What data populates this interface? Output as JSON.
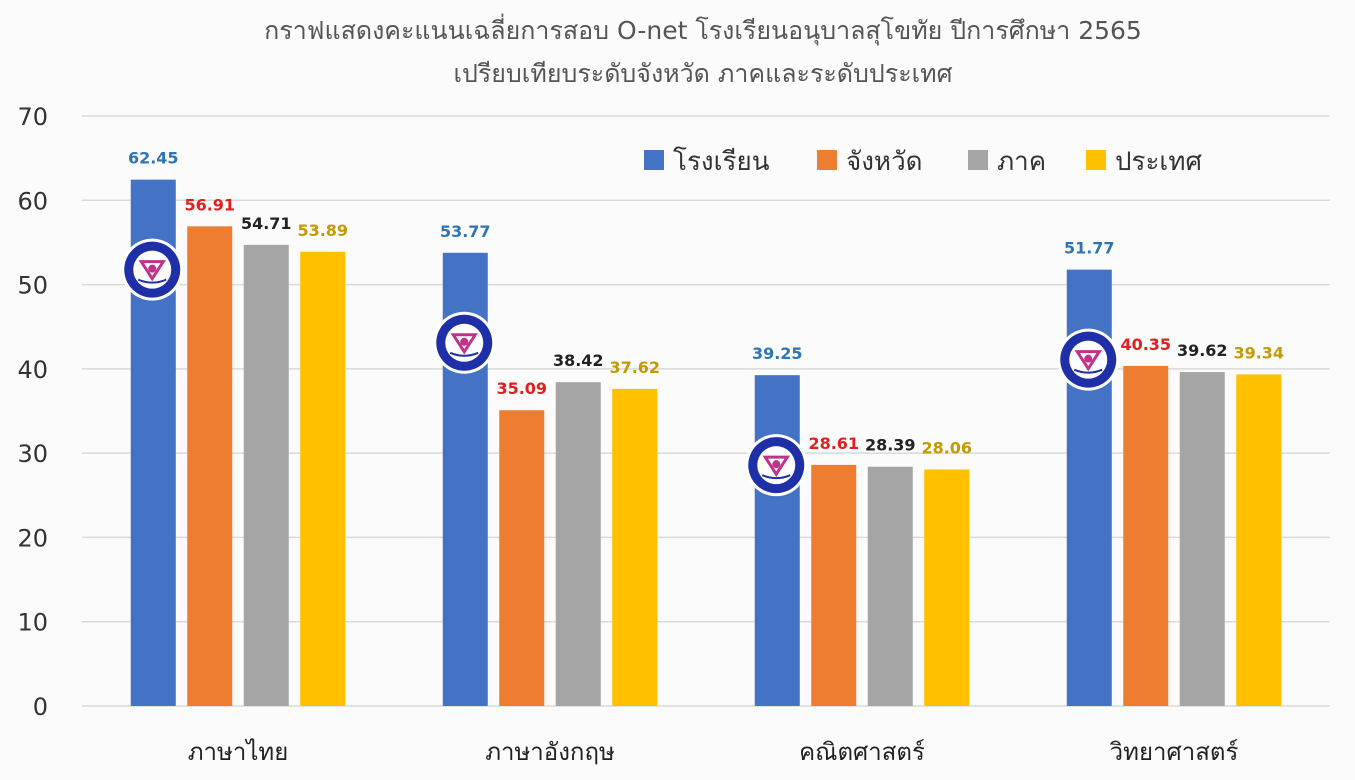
{
  "chart_data": {
    "type": "bar",
    "title": [
      "กราฟแสดงคะแนนเฉลี่ยการสอบ O-net โรงเรียนอนุบาลสุโขทัย ปีการศึกษา 2565",
      "เปรียบเทียบระดับจังหวัด ภาคและระดับประเทศ"
    ],
    "categories": [
      "ภาษาไทย",
      "ภาษาอังกฤษ",
      "คณิตศาสตร์",
      "วิทยาศาสตร์"
    ],
    "series": [
      {
        "name": "โรงเรียน",
        "values": [
          62.45,
          53.77,
          39.25,
          51.77
        ],
        "color": "#4472c4",
        "label_color": "#2e75b6"
      },
      {
        "name": "จังหวัด",
        "values": [
          56.91,
          35.09,
          28.61,
          40.35
        ],
        "color": "#ed7d31",
        "label_color": "#e02020"
      },
      {
        "name": "ภาค",
        "values": [
          54.71,
          38.42,
          28.39,
          39.62
        ],
        "color": "#a5a5a5",
        "label_color": "#222222"
      },
      {
        "name": "ประเทศ",
        "values": [
          53.89,
          37.62,
          28.06,
          39.34
        ],
        "color": "#ffc000",
        "label_color": "#c49a00"
      }
    ],
    "data_labels": [
      [
        "62.45",
        "53.77",
        "39.25",
        "51.77"
      ],
      [
        "56.91",
        "35.09",
        "28.61",
        "40.35"
      ],
      [
        "54.71",
        "38.42",
        "28.39",
        "39.62"
      ],
      [
        "53.89",
        "37.62",
        "28.06",
        "39.34"
      ]
    ],
    "yticks": [
      "0",
      "10",
      "20",
      "30",
      "40",
      "50",
      "60",
      "70"
    ],
    "ylim": [
      0,
      70
    ],
    "grid": true,
    "legend_position": "top-right",
    "school_logo_icon": "school-seal-icon",
    "logo_icon_series": "โรงเรียน"
  }
}
